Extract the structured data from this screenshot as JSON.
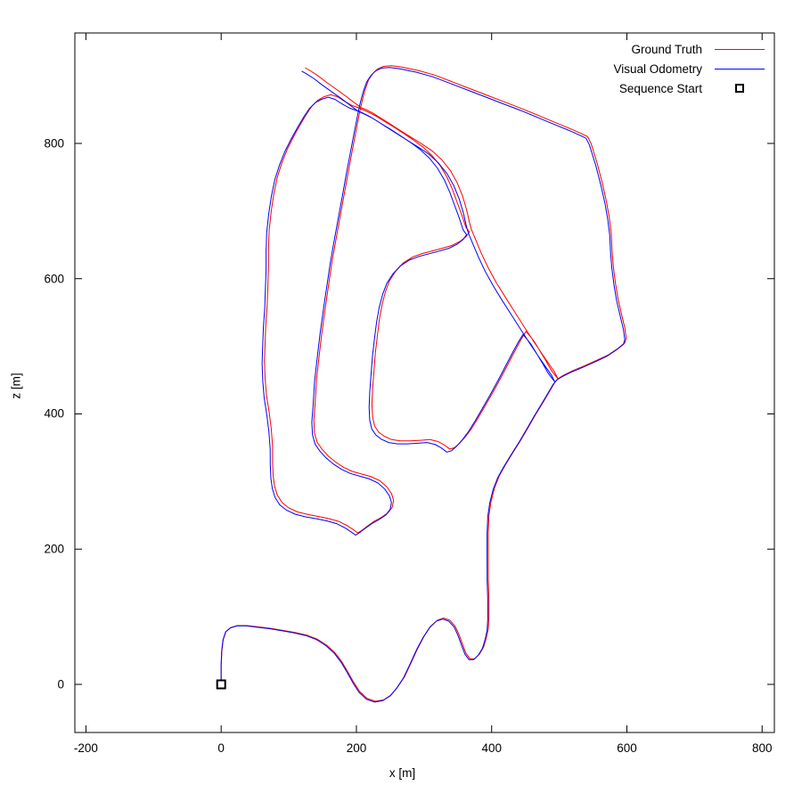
{
  "legend": {
    "items": [
      {
        "label": "Ground Truth",
        "type": "line",
        "color": "#ff0000"
      },
      {
        "label": "Visual Odometry",
        "type": "line",
        "color": "#0000ff"
      },
      {
        "label": "Sequence Start",
        "type": "marker",
        "color": "#000000"
      }
    ]
  },
  "axes": {
    "xlabel": "x [m]",
    "ylabel": "z [m]",
    "x_ticks": [
      -200,
      0,
      200,
      400,
      600,
      800
    ],
    "y_ticks": [
      0,
      200,
      400,
      600,
      800
    ],
    "xlim": [
      -216,
      818
    ],
    "ylim": [
      -71,
      963
    ],
    "border_color": "#000000",
    "background": "#ffffff",
    "grid": false,
    "legend_position": "top-right"
  },
  "chart_data": {
    "type": "line",
    "title": "",
    "xlabel": "x [m]",
    "ylabel": "z [m]",
    "series": [
      {
        "name": "Ground Truth",
        "color": "#ff0000",
        "points": [
          [
            0,
            0
          ],
          [
            0,
            28
          ],
          [
            1,
            50
          ],
          [
            3,
            66
          ],
          [
            7,
            78
          ],
          [
            14,
            84
          ],
          [
            24,
            87
          ],
          [
            38,
            87
          ],
          [
            55,
            85
          ],
          [
            72,
            83
          ],
          [
            90,
            80
          ],
          [
            108,
            77
          ],
          [
            126,
            73
          ],
          [
            142,
            67
          ],
          [
            156,
            58
          ],
          [
            168,
            47
          ],
          [
            178,
            34
          ],
          [
            187,
            19
          ],
          [
            196,
            3
          ],
          [
            205,
            -11
          ],
          [
            216,
            -21
          ],
          [
            228,
            -25
          ],
          [
            240,
            -23
          ],
          [
            251,
            -16
          ],
          [
            261,
            -4
          ],
          [
            271,
            11
          ],
          [
            280,
            30
          ],
          [
            290,
            52
          ],
          [
            300,
            71
          ],
          [
            310,
            86
          ],
          [
            320,
            95
          ],
          [
            329,
            98
          ],
          [
            338,
            95
          ],
          [
            346,
            86
          ],
          [
            352,
            73
          ],
          [
            357,
            59
          ],
          [
            362,
            46
          ],
          [
            368,
            38
          ],
          [
            375,
            38
          ],
          [
            382,
            45
          ],
          [
            388,
            55
          ],
          [
            392,
            68
          ],
          [
            395,
            82
          ],
          [
            396,
            100
          ],
          [
            396,
            125
          ],
          [
            395,
            155
          ],
          [
            395,
            190
          ],
          [
            395,
            225
          ],
          [
            396,
            250
          ],
          [
            399,
            270
          ],
          [
            404,
            290
          ],
          [
            411,
            308
          ],
          [
            420,
            324
          ],
          [
            431,
            342
          ],
          [
            443,
            361
          ],
          [
            454,
            380
          ],
          [
            465,
            399
          ],
          [
            476,
            417
          ],
          [
            486,
            434
          ],
          [
            493,
            446
          ],
          [
            498,
            452
          ],
          [
            506,
            457
          ],
          [
            520,
            464
          ],
          [
            537,
            471
          ],
          [
            555,
            479
          ],
          [
            572,
            487
          ],
          [
            587,
            497
          ],
          [
            597,
            505
          ],
          [
            599,
            512
          ],
          [
            597,
            527
          ],
          [
            592,
            548
          ],
          [
            587,
            570
          ],
          [
            583,
            594
          ],
          [
            580,
            618
          ],
          [
            578,
            642
          ],
          [
            577,
            666
          ],
          [
            574,
            690
          ],
          [
            570,
            713
          ],
          [
            564,
            740
          ],
          [
            556,
            771
          ],
          [
            547,
            800
          ],
          [
            542,
            810
          ],
          [
            534,
            814
          ],
          [
            516,
            822
          ],
          [
            494,
            831
          ],
          [
            470,
            841
          ],
          [
            446,
            851
          ],
          [
            420,
            861
          ],
          [
            394,
            871
          ],
          [
            368,
            881
          ],
          [
            342,
            891
          ],
          [
            316,
            901
          ],
          [
            291,
            908
          ],
          [
            267,
            913
          ],
          [
            252,
            915
          ],
          [
            240,
            914
          ],
          [
            231,
            910
          ],
          [
            224,
            903
          ],
          [
            218,
            894
          ],
          [
            213,
            880
          ],
          [
            209,
            865
          ],
          [
            206,
            852
          ],
          [
            203,
            837
          ],
          [
            199,
            816
          ],
          [
            194,
            790
          ],
          [
            188,
            758
          ],
          [
            182,
            725
          ],
          [
            176,
            692
          ],
          [
            170,
            659
          ],
          [
            164,
            625
          ],
          [
            159,
            591
          ],
          [
            154,
            557
          ],
          [
            149,
            521
          ],
          [
            145,
            486
          ],
          [
            141,
            451
          ],
          [
            139,
            416
          ],
          [
            137,
            391
          ],
          [
            138,
            372
          ],
          [
            142,
            358
          ],
          [
            149,
            348
          ],
          [
            158,
            338
          ],
          [
            169,
            329
          ],
          [
            181,
            321
          ],
          [
            194,
            315
          ],
          [
            208,
            311
          ],
          [
            222,
            307
          ],
          [
            235,
            301
          ],
          [
            245,
            292
          ],
          [
            252,
            282
          ],
          [
            255,
            272
          ],
          [
            253,
            262
          ],
          [
            247,
            254
          ],
          [
            237,
            247
          ],
          [
            226,
            241
          ],
          [
            215,
            233
          ],
          [
            207,
            227
          ],
          [
            202,
            224
          ],
          [
            195,
            229
          ],
          [
            186,
            235
          ],
          [
            174,
            241
          ],
          [
            160,
            245
          ],
          [
            145,
            248
          ],
          [
            129,
            251
          ],
          [
            113,
            255
          ],
          [
            100,
            261
          ],
          [
            90,
            269
          ],
          [
            83,
            280
          ],
          [
            79,
            293
          ],
          [
            77,
            308
          ],
          [
            76,
            328
          ],
          [
            76,
            352
          ],
          [
            74,
            378
          ],
          [
            71,
            402
          ],
          [
            67,
            428
          ],
          [
            65,
            452
          ],
          [
            64,
            478
          ],
          [
            65,
            505
          ],
          [
            66,
            532
          ],
          [
            68,
            560
          ],
          [
            69,
            588
          ],
          [
            70,
            616
          ],
          [
            70,
            644
          ],
          [
            71,
            672
          ],
          [
            74,
            700
          ],
          [
            78,
            726
          ],
          [
            83,
            750
          ],
          [
            90,
            772
          ],
          [
            98,
            792
          ],
          [
            107,
            810
          ],
          [
            117,
            828
          ],
          [
            126,
            843
          ],
          [
            134,
            855
          ],
          [
            143,
            864
          ],
          [
            152,
            869
          ],
          [
            162,
            872
          ],
          [
            172,
            869
          ],
          [
            183,
            862
          ],
          [
            194,
            856
          ],
          [
            205,
            852
          ],
          [
            216,
            847
          ],
          [
            228,
            841
          ],
          [
            241,
            833
          ],
          [
            254,
            825
          ],
          [
            268,
            816
          ],
          [
            283,
            806
          ],
          [
            298,
            795
          ],
          [
            312,
            782
          ],
          [
            324,
            767
          ],
          [
            334,
            750
          ],
          [
            342,
            732
          ],
          [
            349,
            713
          ],
          [
            356,
            694
          ],
          [
            362,
            676
          ],
          [
            367,
            669
          ],
          [
            362,
            662
          ],
          [
            353,
            655
          ],
          [
            341,
            649
          ],
          [
            327,
            645
          ],
          [
            312,
            641
          ],
          [
            297,
            637
          ],
          [
            283,
            632
          ],
          [
            269,
            623
          ],
          [
            258,
            611
          ],
          [
            249,
            597
          ],
          [
            243,
            581
          ],
          [
            238,
            562
          ],
          [
            234,
            540
          ],
          [
            231,
            516
          ],
          [
            228,
            490
          ],
          [
            226,
            464
          ],
          [
            224,
            438
          ],
          [
            223,
            414
          ],
          [
            224,
            395
          ],
          [
            227,
            382
          ],
          [
            233,
            373
          ],
          [
            241,
            367
          ],
          [
            252,
            362
          ],
          [
            265,
            360
          ],
          [
            280,
            360
          ],
          [
            295,
            361
          ],
          [
            309,
            362
          ],
          [
            321,
            359
          ],
          [
            330,
            354
          ],
          [
            338,
            348
          ],
          [
            345,
            350
          ],
          [
            352,
            356
          ],
          [
            361,
            366
          ],
          [
            370,
            378
          ],
          [
            380,
            394
          ],
          [
            391,
            413
          ],
          [
            403,
            434
          ],
          [
            415,
            456
          ],
          [
            426,
            477
          ],
          [
            436,
            496
          ],
          [
            444,
            511
          ],
          [
            449,
            519
          ],
          [
            451,
            522
          ],
          [
            456,
            516
          ],
          [
            463,
            507
          ],
          [
            471,
            494
          ],
          [
            480,
            479
          ],
          [
            488,
            465
          ],
          [
            494,
            457
          ],
          [
            498,
            452
          ],
          [
            493,
            462
          ],
          [
            484,
            475
          ],
          [
            473,
            491
          ],
          [
            461,
            509
          ],
          [
            448,
            529
          ],
          [
            434,
            551
          ],
          [
            420,
            573
          ],
          [
            407,
            594
          ],
          [
            395,
            616
          ],
          [
            385,
            637
          ],
          [
            377,
            656
          ],
          [
            372,
            668
          ],
          [
            370,
            673
          ],
          [
            367,
            684
          ],
          [
            363,
            702
          ],
          [
            357,
            722
          ],
          [
            349,
            742
          ],
          [
            339,
            760
          ],
          [
            326,
            776
          ],
          [
            312,
            789
          ],
          [
            297,
            799
          ],
          [
            281,
            809
          ],
          [
            265,
            819
          ],
          [
            251,
            828
          ],
          [
            237,
            837
          ],
          [
            224,
            845
          ],
          [
            214,
            850
          ],
          [
            207,
            853
          ],
          [
            196,
            861
          ],
          [
            183,
            871
          ],
          [
            169,
            881
          ],
          [
            155,
            891
          ],
          [
            142,
            901
          ],
          [
            131,
            908
          ],
          [
            124,
            912
          ]
        ]
      },
      {
        "name": "Visual Odometry",
        "color": "#0000ff",
        "derived_from": "Ground Truth",
        "drift_offset": {
          "dx": -5,
          "dz": -5,
          "power": 0.6
        }
      }
    ],
    "marker": {
      "name": "Sequence Start",
      "x": 0,
      "z": 0,
      "shape": "open-square",
      "color": "#000000"
    }
  }
}
